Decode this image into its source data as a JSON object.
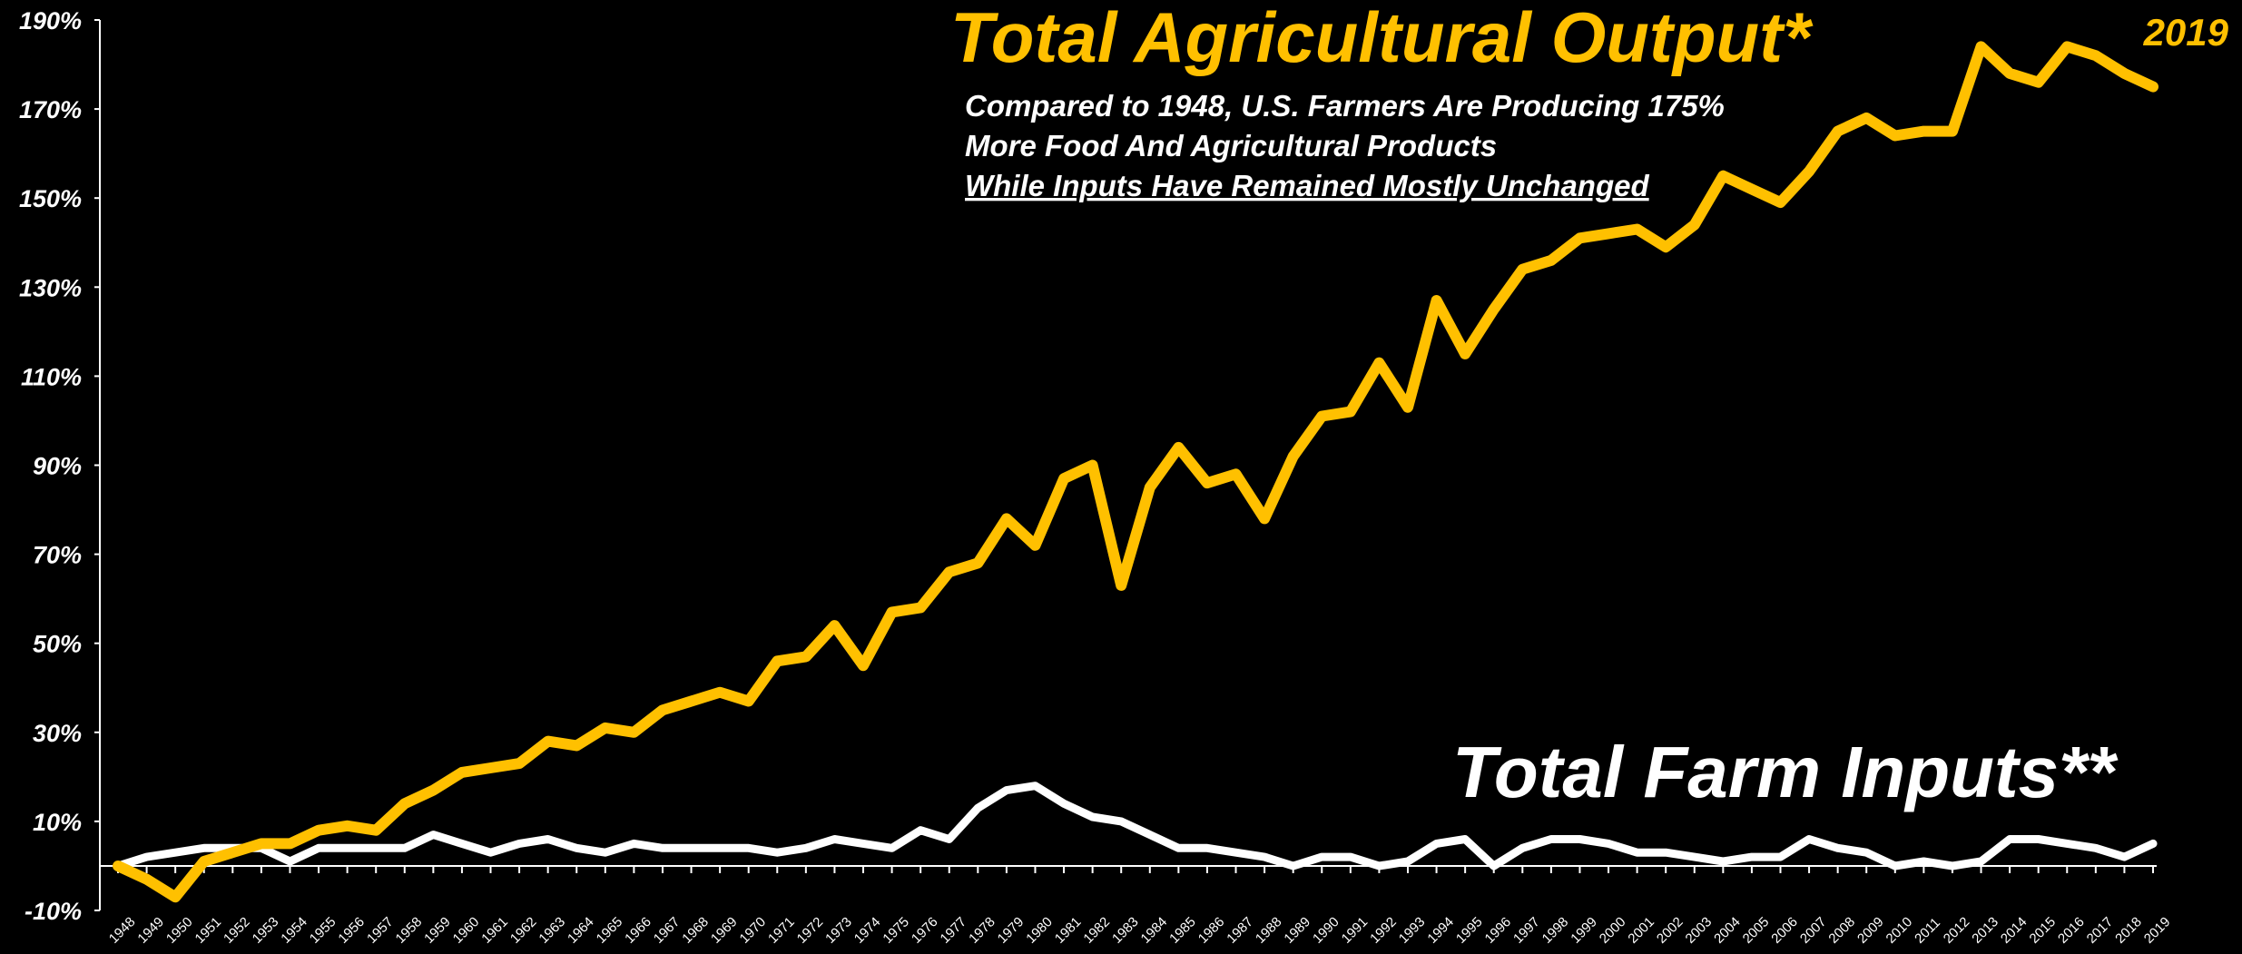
{
  "chart_data": {
    "type": "line",
    "title": "Total Agricultural Output*",
    "subtitle_lines": [
      "Compared to 1948, U.S. Farmers Are Producing 175%",
      "More Food And Agricultural Products",
      "While Inputs Have Remained Mostly Unchanged"
    ],
    "end_label": "2019",
    "inputs_label": "Total Farm Inputs**",
    "ylim": [
      -10,
      190
    ],
    "yticks": [
      -10,
      10,
      30,
      50,
      70,
      90,
      110,
      130,
      150,
      170,
      190
    ],
    "ytick_labels": [
      "-10%",
      "10%",
      "30%",
      "50%",
      "70%",
      "90%",
      "110%",
      "130%",
      "150%",
      "170%",
      "190%"
    ],
    "x": [
      "1948",
      "1949",
      "1950",
      "1951",
      "1952",
      "1953",
      "1954",
      "1955",
      "1956",
      "1957",
      "1958",
      "1959",
      "1960",
      "1961",
      "1962",
      "1963",
      "1964",
      "1965",
      "1966",
      "1967",
      "1968",
      "1969",
      "1970",
      "1971",
      "1972",
      "1973",
      "1974",
      "1975",
      "1976",
      "1977",
      "1978",
      "1979",
      "1980",
      "1981",
      "1982",
      "1983",
      "1984",
      "1985",
      "1986",
      "1987",
      "1988",
      "1989",
      "1990",
      "1991",
      "1992",
      "1993",
      "1994",
      "1995",
      "1996",
      "1997",
      "1998",
      "1999",
      "2000",
      "2001",
      "2002",
      "2003",
      "2004",
      "2005",
      "2006",
      "2007",
      "2008",
      "2009",
      "2010",
      "2011",
      "2012",
      "2013",
      "2014",
      "2015",
      "2016",
      "2017",
      "2018",
      "2019"
    ],
    "series": [
      {
        "name": "Total Agricultural Output*",
        "color": "#FFC000",
        "values": [
          0,
          -3,
          -7,
          1,
          3,
          5,
          5,
          8,
          9,
          8,
          14,
          17,
          21,
          22,
          23,
          28,
          27,
          31,
          30,
          35,
          37,
          39,
          37,
          46,
          47,
          54,
          45,
          57,
          58,
          66,
          68,
          78,
          72,
          87,
          90,
          63,
          85,
          94,
          86,
          88,
          78,
          92,
          101,
          102,
          113,
          103,
          127,
          115,
          125,
          134,
          136,
          141,
          142,
          143,
          139,
          144,
          155,
          152,
          149,
          156,
          165,
          168,
          164,
          165,
          165,
          184,
          178,
          176,
          184,
          182,
          178,
          175
        ]
      },
      {
        "name": "Total Farm Inputs**",
        "color": "#FFFFFF",
        "values": [
          0,
          2,
          3,
          4,
          4,
          4,
          1,
          4,
          4,
          4,
          4,
          7,
          5,
          3,
          5,
          6,
          4,
          3,
          5,
          4,
          4,
          4,
          4,
          3,
          4,
          6,
          5,
          4,
          8,
          6,
          13,
          17,
          18,
          14,
          11,
          10,
          7,
          4,
          4,
          3,
          2,
          0,
          2,
          2,
          0,
          1,
          5,
          6,
          0,
          4,
          6,
          6,
          5,
          3,
          3,
          2,
          1,
          2,
          2,
          6,
          4,
          3,
          0,
          1,
          0,
          1,
          6,
          6,
          5,
          4,
          2,
          5
        ]
      }
    ],
    "grid": false,
    "legend": "none"
  }
}
